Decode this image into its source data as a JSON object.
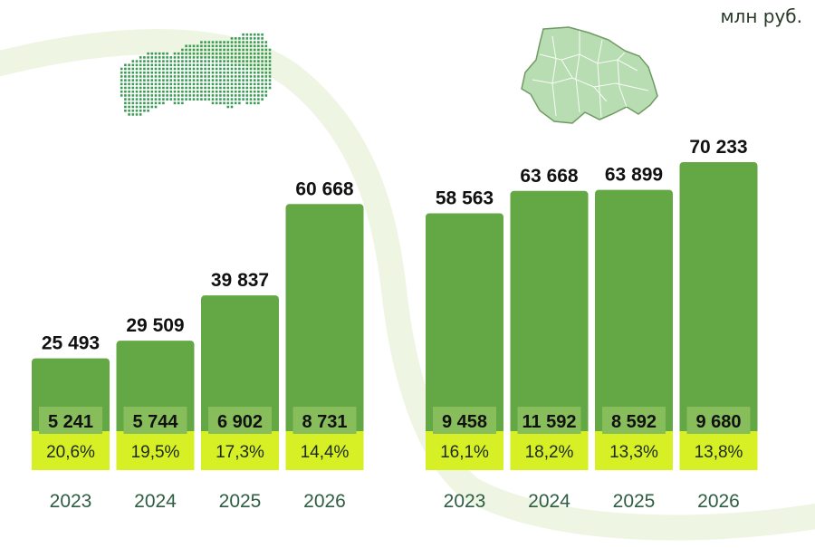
{
  "unit_label": "млн руб.",
  "colors": {
    "bar": "#63a844",
    "inner": "#87bd5a",
    "band": "#d7f025",
    "year_text": "#2f5e42",
    "value_text": "#111111",
    "swoosh": "#eef5e2",
    "map_dots": "#3a9b55",
    "region_fill": "#b9ddb2",
    "region_stroke": "#6f9a62"
  },
  "icons": [
    "russia-dot-map-icon",
    "region-map-icon"
  ],
  "chart_data": [
    {
      "type": "bar",
      "categories": [
        "2023",
        "2024",
        "2025",
        "2026"
      ],
      "totals": [
        25493,
        29509,
        39837,
        60668
      ],
      "total_labels": [
        "25 493",
        "29 509",
        "39 837",
        "60 668"
      ],
      "sub_values": [
        5241,
        5744,
        6902,
        8731
      ],
      "sub_labels": [
        "5 241",
        "5 744",
        "6 902",
        "8 731"
      ],
      "shares": [
        20.6,
        19.5,
        17.3,
        14.4
      ],
      "share_labels": [
        "20,6%",
        "19,5%",
        "17,3%",
        "14,4%"
      ]
    },
    {
      "type": "bar",
      "categories": [
        "2023",
        "2024",
        "2025",
        "2026"
      ],
      "totals": [
        58563,
        63668,
        63899,
        70233
      ],
      "total_labels": [
        "58 563",
        "63 668",
        "63 899",
        "70 233"
      ],
      "sub_values": [
        9458,
        11592,
        8592,
        9680
      ],
      "sub_labels": [
        "9 458",
        "11 592",
        "8 592",
        "9 680"
      ],
      "shares": [
        16.1,
        18.2,
        13.3,
        13.8
      ],
      "share_labels": [
        "16,1%",
        "18,2%",
        "13,3%",
        "13,8%"
      ]
    }
  ]
}
